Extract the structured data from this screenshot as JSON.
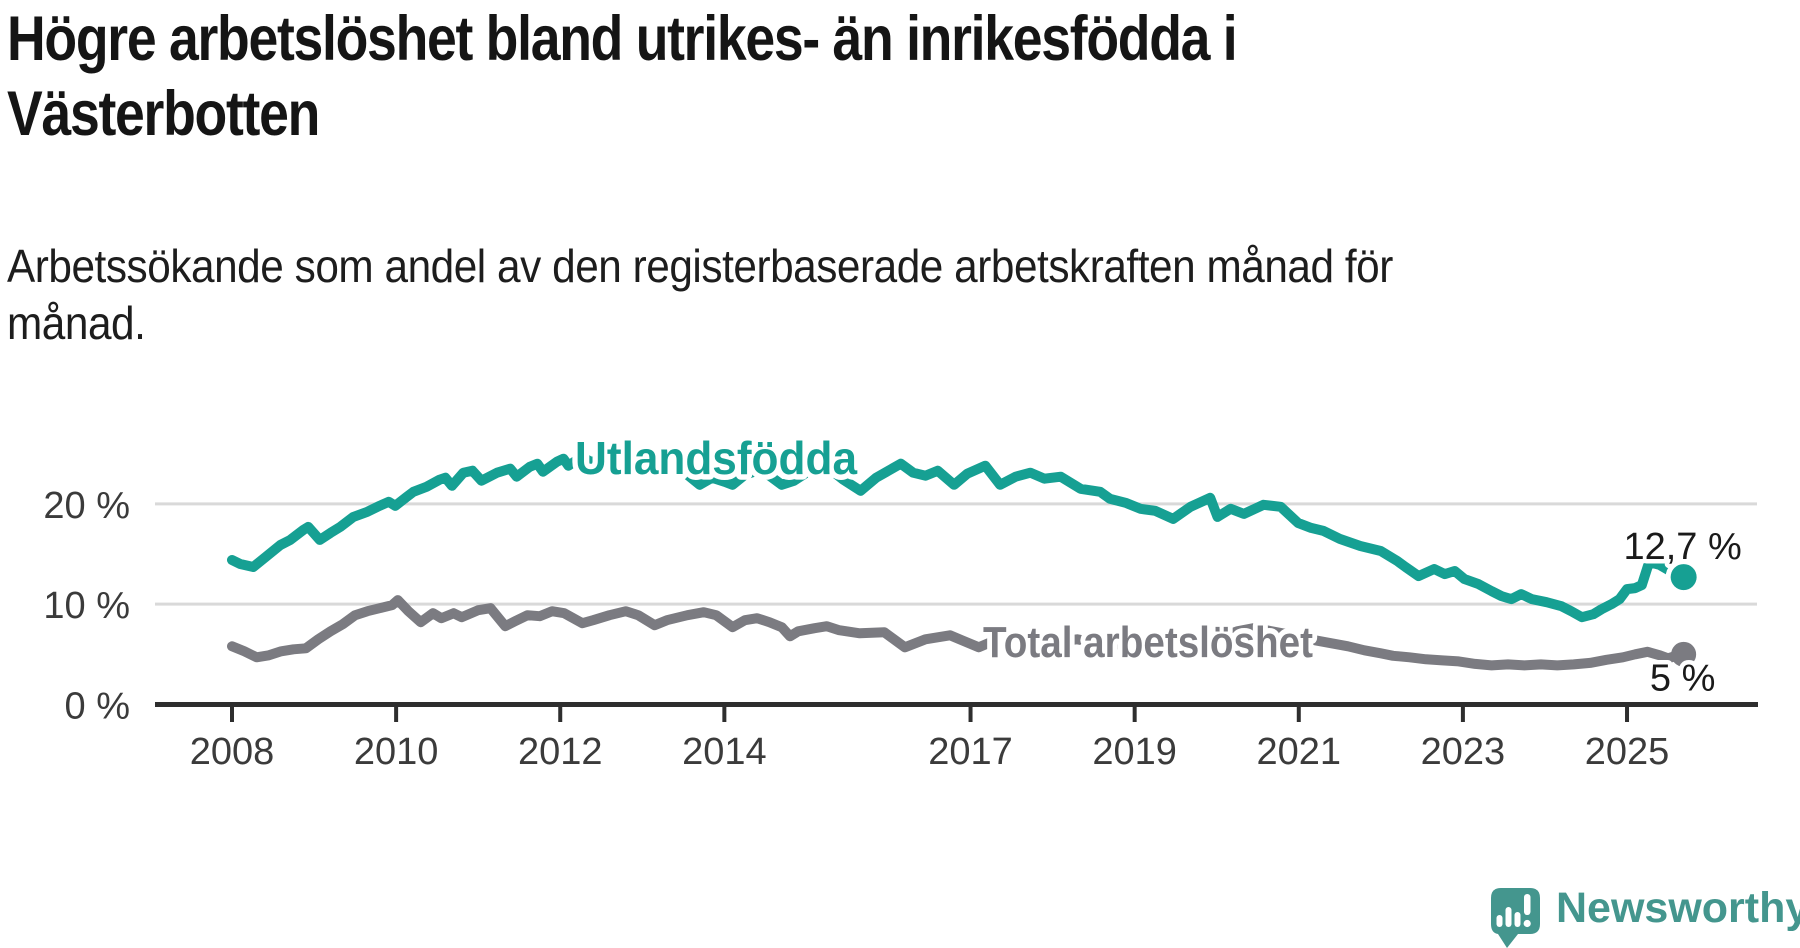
{
  "header": {
    "title_lines": [
      "Högre arbetslöshet bland utrikes- än inrikesfödda i",
      "Västerbotten"
    ],
    "subtitle_lines": [
      "Arbetssökande som andel av den registerbaserade arbetskraften månad för",
      "månad."
    ]
  },
  "footer": {
    "brand": "Newsworthy",
    "logo_icon": "speech-bubble-bar-chart-icon"
  },
  "colors": {
    "foreign_born_line": "#16a093",
    "total_line": "#7b7b81",
    "value_label": "#1a1a1a",
    "axis": "#2e2e2e",
    "tick_label": "#3b3b3b",
    "gridline": "#d9d9d9",
    "brand_teal": "#44968e",
    "title_text": "#151515"
  },
  "chart_data": {
    "type": "line",
    "title": "Högre arbetslöshet bland utrikes- än inrikesfödda i Västerbotten",
    "subtitle": "Arbetssökande som andel av den registerbaserade arbetskraften månad för månad.",
    "unit": "%",
    "grid": true,
    "legend_position": "inline-labels",
    "x_axis": {
      "ticks": [
        2008,
        2010,
        2012,
        2014,
        2017,
        2019,
        2021,
        2023,
        2025
      ],
      "range": [
        2008,
        2025.75
      ]
    },
    "y_axis": {
      "ticks": [
        0,
        10,
        20
      ],
      "gridlines": [
        10,
        20
      ],
      "range": [
        0,
        26
      ],
      "tick_suffix": " %"
    },
    "series": [
      {
        "name": "Utlandsfödda",
        "color": "#16a093",
        "end_label": "12,7 %",
        "end_value": 12.7,
        "points": [
          [
            2008.0,
            14.4
          ],
          [
            2008.1,
            14.0
          ],
          [
            2008.26,
            13.7
          ],
          [
            2008.44,
            14.9
          ],
          [
            2008.59,
            15.9
          ],
          [
            2008.71,
            16.4
          ],
          [
            2008.87,
            17.4
          ],
          [
            2008.93,
            17.7
          ],
          [
            2009.07,
            16.4
          ],
          [
            2009.2,
            17.1
          ],
          [
            2009.32,
            17.7
          ],
          [
            2009.48,
            18.7
          ],
          [
            2009.65,
            19.2
          ],
          [
            2009.8,
            19.8
          ],
          [
            2009.91,
            20.2
          ],
          [
            2009.99,
            19.8
          ],
          [
            2010.13,
            20.7
          ],
          [
            2010.21,
            21.2
          ],
          [
            2010.37,
            21.7
          ],
          [
            2010.53,
            22.4
          ],
          [
            2010.6,
            22.6
          ],
          [
            2010.68,
            21.8
          ],
          [
            2010.82,
            23.1
          ],
          [
            2010.93,
            23.3
          ],
          [
            2011.04,
            22.3
          ],
          [
            2011.23,
            23.1
          ],
          [
            2011.39,
            23.5
          ],
          [
            2011.47,
            22.7
          ],
          [
            2011.63,
            23.7
          ],
          [
            2011.72,
            24.0
          ],
          [
            2011.79,
            23.2
          ],
          [
            2011.96,
            24.2
          ],
          [
            2012.04,
            24.5
          ],
          [
            2012.1,
            23.8
          ],
          [
            2012.21,
            24.4
          ],
          [
            2012.28,
            24.6
          ],
          [
            2012.37,
            24.2
          ],
          [
            2012.5,
            24.3
          ],
          [
            2012.65,
            23.8
          ],
          [
            2012.8,
            24.1
          ],
          [
            2012.95,
            23.7
          ],
          [
            2013.1,
            24.0
          ],
          [
            2013.25,
            23.5
          ],
          [
            2013.4,
            23.8
          ],
          [
            2013.55,
            22.9
          ],
          [
            2013.7,
            21.9
          ],
          [
            2013.85,
            22.6
          ],
          [
            2014.0,
            22.2
          ],
          [
            2014.1,
            21.9
          ],
          [
            2014.25,
            22.9
          ],
          [
            2014.4,
            23.3
          ],
          [
            2014.55,
            22.8
          ],
          [
            2014.7,
            21.9
          ],
          [
            2014.85,
            22.3
          ],
          [
            2015.0,
            23.1
          ],
          [
            2015.15,
            23.4
          ],
          [
            2015.25,
            23.7
          ],
          [
            2015.45,
            22.4
          ],
          [
            2015.66,
            21.3
          ],
          [
            2015.85,
            22.6
          ],
          [
            2016.0,
            23.3
          ],
          [
            2016.15,
            24.0
          ],
          [
            2016.3,
            23.1
          ],
          [
            2016.45,
            22.8
          ],
          [
            2016.6,
            23.3
          ],
          [
            2016.8,
            21.9
          ],
          [
            2016.96,
            23.0
          ],
          [
            2017.18,
            23.8
          ],
          [
            2017.36,
            21.9
          ],
          [
            2017.55,
            22.7
          ],
          [
            2017.73,
            23.1
          ],
          [
            2017.9,
            22.5
          ],
          [
            2018.1,
            22.7
          ],
          [
            2018.34,
            21.5
          ],
          [
            2018.58,
            21.2
          ],
          [
            2018.7,
            20.5
          ],
          [
            2018.89,
            20.1
          ],
          [
            2019.07,
            19.5
          ],
          [
            2019.25,
            19.3
          ],
          [
            2019.47,
            18.5
          ],
          [
            2019.68,
            19.7
          ],
          [
            2019.92,
            20.6
          ],
          [
            2020.01,
            18.7
          ],
          [
            2020.17,
            19.5
          ],
          [
            2020.33,
            19.0
          ],
          [
            2020.57,
            19.9
          ],
          [
            2020.78,
            19.7
          ],
          [
            2020.99,
            18.1
          ],
          [
            2021.15,
            17.6
          ],
          [
            2021.3,
            17.3
          ],
          [
            2021.5,
            16.5
          ],
          [
            2021.75,
            15.8
          ],
          [
            2022.0,
            15.3
          ],
          [
            2022.2,
            14.3
          ],
          [
            2022.3,
            13.7
          ],
          [
            2022.46,
            12.8
          ],
          [
            2022.65,
            13.5
          ],
          [
            2022.78,
            13.0
          ],
          [
            2022.9,
            13.3
          ],
          [
            2023.02,
            12.5
          ],
          [
            2023.19,
            12.0
          ],
          [
            2023.35,
            11.3
          ],
          [
            2023.47,
            10.8
          ],
          [
            2023.59,
            10.5
          ],
          [
            2023.71,
            11.0
          ],
          [
            2023.84,
            10.5
          ],
          [
            2024.02,
            10.2
          ],
          [
            2024.2,
            9.8
          ],
          [
            2024.32,
            9.3
          ],
          [
            2024.45,
            8.7
          ],
          [
            2024.59,
            9.0
          ],
          [
            2024.69,
            9.5
          ],
          [
            2024.81,
            10.0
          ],
          [
            2024.91,
            10.5
          ],
          [
            2025.0,
            11.5
          ],
          [
            2025.1,
            11.6
          ],
          [
            2025.18,
            11.9
          ],
          [
            2025.27,
            14.2
          ],
          [
            2025.4,
            13.9
          ],
          [
            2025.55,
            13.2
          ],
          [
            2025.69,
            12.7
          ]
        ]
      },
      {
        "name": "Total arbetslöshet",
        "color": "#7b7b81",
        "end_label": "5 %",
        "end_value": 5.0,
        "points": [
          [
            2008.0,
            5.8
          ],
          [
            2008.15,
            5.3
          ],
          [
            2008.3,
            4.7
          ],
          [
            2008.45,
            4.9
          ],
          [
            2008.6,
            5.3
          ],
          [
            2008.75,
            5.5
          ],
          [
            2008.9,
            5.6
          ],
          [
            2009.05,
            6.5
          ],
          [
            2009.2,
            7.3
          ],
          [
            2009.35,
            8.0
          ],
          [
            2009.5,
            8.9
          ],
          [
            2009.65,
            9.3
          ],
          [
            2009.8,
            9.6
          ],
          [
            2009.95,
            9.9
          ],
          [
            2010.02,
            10.4
          ],
          [
            2010.15,
            9.3
          ],
          [
            2010.3,
            8.2
          ],
          [
            2010.45,
            9.1
          ],
          [
            2010.55,
            8.6
          ],
          [
            2010.7,
            9.1
          ],
          [
            2010.8,
            8.7
          ],
          [
            2011.0,
            9.4
          ],
          [
            2011.15,
            9.6
          ],
          [
            2011.33,
            7.8
          ],
          [
            2011.45,
            8.3
          ],
          [
            2011.6,
            8.9
          ],
          [
            2011.75,
            8.8
          ],
          [
            2011.9,
            9.3
          ],
          [
            2012.05,
            9.1
          ],
          [
            2012.27,
            8.1
          ],
          [
            2012.4,
            8.4
          ],
          [
            2012.6,
            8.9
          ],
          [
            2012.8,
            9.3
          ],
          [
            2012.95,
            8.9
          ],
          [
            2013.15,
            7.9
          ],
          [
            2013.3,
            8.4
          ],
          [
            2013.55,
            8.9
          ],
          [
            2013.75,
            9.2
          ],
          [
            2013.9,
            8.9
          ],
          [
            2014.1,
            7.7
          ],
          [
            2014.25,
            8.4
          ],
          [
            2014.4,
            8.6
          ],
          [
            2014.55,
            8.2
          ],
          [
            2014.7,
            7.7
          ],
          [
            2014.8,
            6.8
          ],
          [
            2014.9,
            7.3
          ],
          [
            2015.1,
            7.6
          ],
          [
            2015.25,
            7.8
          ],
          [
            2015.4,
            7.4
          ],
          [
            2015.65,
            7.1
          ],
          [
            2015.95,
            7.2
          ],
          [
            2016.2,
            5.7
          ],
          [
            2016.45,
            6.5
          ],
          [
            2016.75,
            6.9
          ],
          [
            2017.1,
            5.7
          ],
          [
            2017.3,
            6.4
          ],
          [
            2017.5,
            6.6
          ],
          [
            2017.7,
            6.4
          ],
          [
            2017.9,
            6.1
          ],
          [
            2018.1,
            6.3
          ],
          [
            2018.3,
            6.5
          ],
          [
            2018.5,
            6.2
          ],
          [
            2018.7,
            5.9
          ],
          [
            2018.9,
            6.1
          ],
          [
            2019.1,
            6.3
          ],
          [
            2019.3,
            6.0
          ],
          [
            2019.5,
            6.3
          ],
          [
            2019.7,
            6.5
          ],
          [
            2019.9,
            6.4
          ],
          [
            2020.05,
            6.7
          ],
          [
            2020.25,
            7.3
          ],
          [
            2020.45,
            7.6
          ],
          [
            2020.6,
            7.4
          ],
          [
            2020.8,
            7.1
          ],
          [
            2021.0,
            6.8
          ],
          [
            2021.2,
            6.4
          ],
          [
            2021.4,
            6.1
          ],
          [
            2021.6,
            5.8
          ],
          [
            2021.8,
            5.4
          ],
          [
            2022.0,
            5.1
          ],
          [
            2022.15,
            4.85
          ],
          [
            2022.35,
            4.7
          ],
          [
            2022.55,
            4.5
          ],
          [
            2022.75,
            4.4
          ],
          [
            2022.95,
            4.3
          ],
          [
            2023.15,
            4.05
          ],
          [
            2023.35,
            3.9
          ],
          [
            2023.55,
            4.0
          ],
          [
            2023.75,
            3.9
          ],
          [
            2023.95,
            4.0
          ],
          [
            2024.15,
            3.9
          ],
          [
            2024.35,
            4.0
          ],
          [
            2024.55,
            4.15
          ],
          [
            2024.75,
            4.45
          ],
          [
            2024.95,
            4.7
          ],
          [
            2025.1,
            5.0
          ],
          [
            2025.25,
            5.25
          ],
          [
            2025.4,
            4.9
          ],
          [
            2025.5,
            4.6
          ],
          [
            2025.6,
            4.85
          ],
          [
            2025.69,
            5.0
          ]
        ]
      }
    ]
  }
}
